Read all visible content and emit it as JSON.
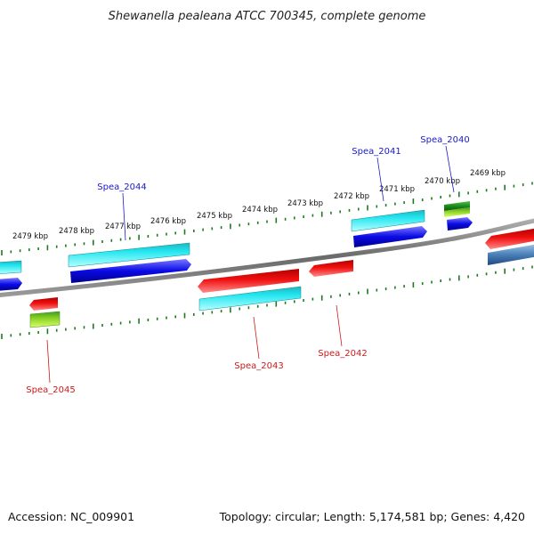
{
  "title": "Shewanella pealeana ATCC 700345, complete genome",
  "footer": {
    "accession": "Accession: NC_009901",
    "summary": "Topology: circular; Length: 5,174,581 bp; Genes: 4,420"
  },
  "colors": {
    "backbone": "#808080",
    "tick": "#1f7a1f",
    "label_forward": "#1a1acc",
    "label_reverse": "#cc1a1a",
    "gene_blue": "#0a0ae6",
    "gene_cyan": "#22e0ea",
    "gene_red": "#e60d0d",
    "gene_green": "#3aa02a",
    "gene_lime": "#a6ea22",
    "gene_steel": "#4a80b8"
  },
  "kbp_labels": [
    "2479 kbp",
    "2478 kbp",
    "2477 kbp",
    "2476 kbp",
    "2475 kbp",
    "2474 kbp",
    "2473 kbp",
    "2472 kbp",
    "2471 kbp",
    "2470 kbp",
    "2469 kbp"
  ],
  "genes": {
    "forward": [
      "Spea_2044",
      "Spea_2041",
      "Spea_2040"
    ],
    "reverse": [
      "Spea_2045",
      "Spea_2043",
      "Spea_2042"
    ]
  }
}
